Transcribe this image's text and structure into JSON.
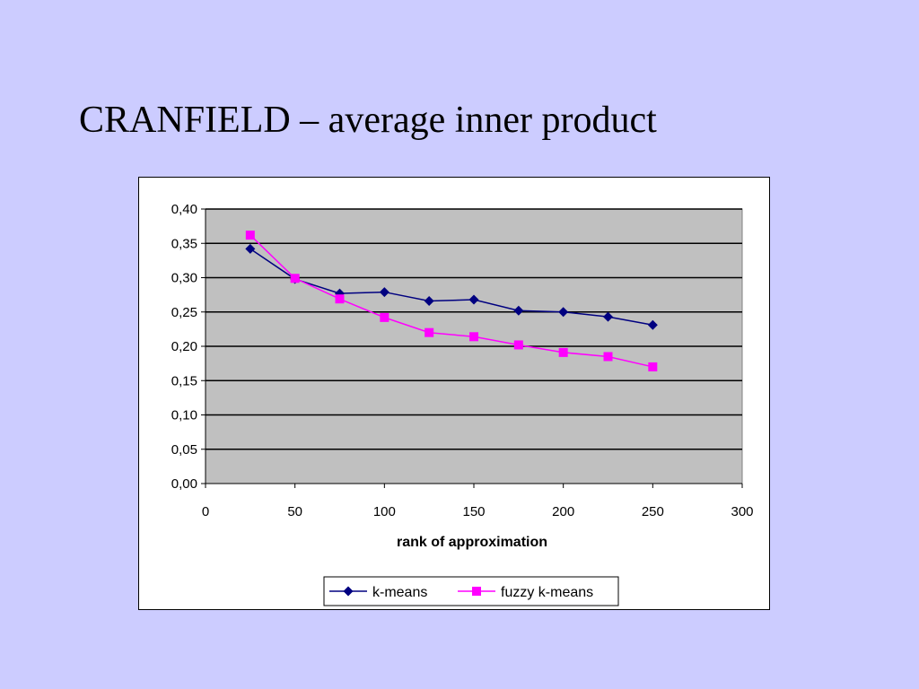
{
  "slide": {
    "title": "CRANFIELD – average inner product"
  },
  "chart_data": {
    "type": "line",
    "title": "",
    "xlabel": "rank of approximation",
    "ylabel": "",
    "xlim": [
      0,
      300
    ],
    "ylim": [
      0,
      0.4
    ],
    "x_ticks": [
      0,
      50,
      100,
      150,
      200,
      250,
      300
    ],
    "x_tick_labels": [
      "0",
      "50",
      "100",
      "150",
      "200",
      "250",
      "300"
    ],
    "y_ticks": [
      0,
      0.05,
      0.1,
      0.15,
      0.2,
      0.25,
      0.3,
      0.35,
      0.4
    ],
    "y_tick_labels": [
      "0,00",
      "0,05",
      "0,10",
      "0,15",
      "0,20",
      "0,25",
      "0,30",
      "0,35",
      "0,40"
    ],
    "grid": "horizontal",
    "plot_background": "#c0c0c0",
    "legend_position": "bottom",
    "x": [
      25,
      50,
      75,
      100,
      125,
      150,
      175,
      200,
      225,
      250
    ],
    "series": [
      {
        "name": "k-means",
        "color": "#000080",
        "marker": "diamond",
        "values": [
          0.342,
          0.298,
          0.277,
          0.279,
          0.266,
          0.268,
          0.252,
          0.25,
          0.243,
          0.231
        ]
      },
      {
        "name": "fuzzy k-means",
        "color": "#ff00ff",
        "marker": "square",
        "values": [
          0.362,
          0.299,
          0.269,
          0.242,
          0.22,
          0.214,
          0.202,
          0.191,
          0.185,
          0.17
        ]
      }
    ]
  }
}
